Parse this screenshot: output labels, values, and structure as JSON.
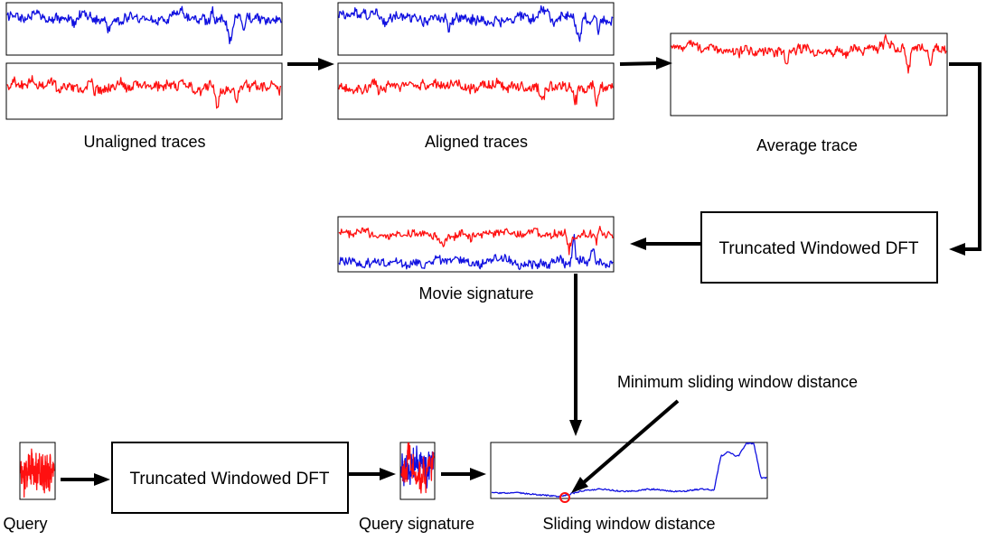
{
  "colors": {
    "trace_a": "#1010e0",
    "trace_b": "#ff1010",
    "marker": "#ff1010",
    "ink": "#000000"
  },
  "diagram": {
    "unaligned_label": "Unaligned traces",
    "aligned_label": "Aligned traces",
    "average_label": "Average trace",
    "dft_top_label": "Truncated Windowed DFT",
    "movie_signature_label": "Movie signature",
    "min_distance_label": "Minimum sliding window distance",
    "query_label": "Query",
    "dft_bottom_label": "Truncated Windowed DFT",
    "query_signature_label": "Query signature",
    "sliding_distance_label": "Sliding window distance"
  }
}
